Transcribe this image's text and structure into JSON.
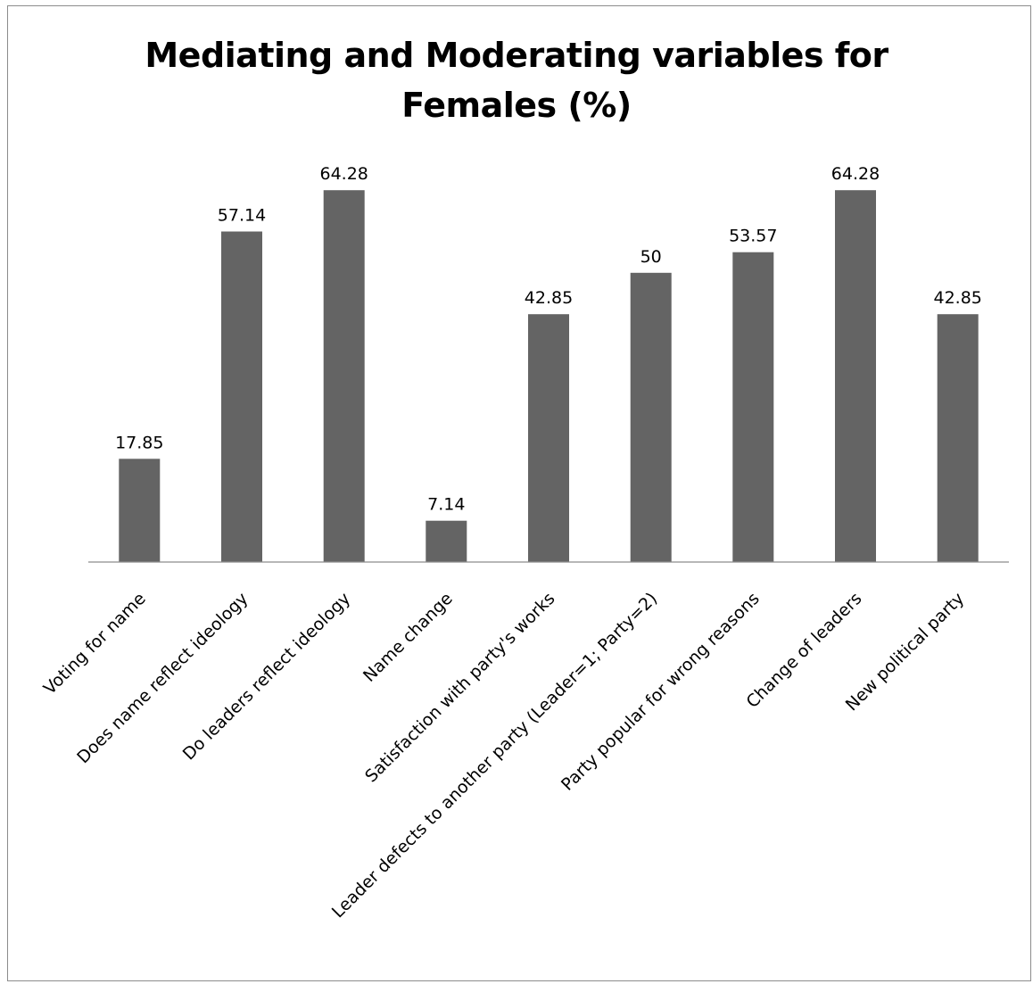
{
  "chart_data": {
    "type": "bar",
    "title_lines": [
      "Mediating and Moderating variables for",
      "Females (%)"
    ],
    "categories": [
      "Voting for name",
      "Does name reflect ideology",
      "Do leaders reflect ideology",
      "Name change",
      "Satisfaction with party's works",
      "Leader defects to another party (Leader=1; Party=2)",
      "Party popular for wrong reasons",
      "Change of leaders",
      "New political party"
    ],
    "values": [
      17.85,
      57.14,
      64.28,
      7.14,
      42.85,
      50,
      53.57,
      64.28,
      42.85
    ],
    "value_labels": [
      "17.85",
      "57.14",
      "64.28",
      "7.14",
      "42.85",
      "50",
      "53.57",
      "64.28",
      "42.85"
    ],
    "bar_color": "#646464",
    "xlabel": "",
    "ylabel": "",
    "ylim": [
      0,
      70
    ],
    "grid": false,
    "legend": "none",
    "x_tick_rotation_deg": -45
  }
}
